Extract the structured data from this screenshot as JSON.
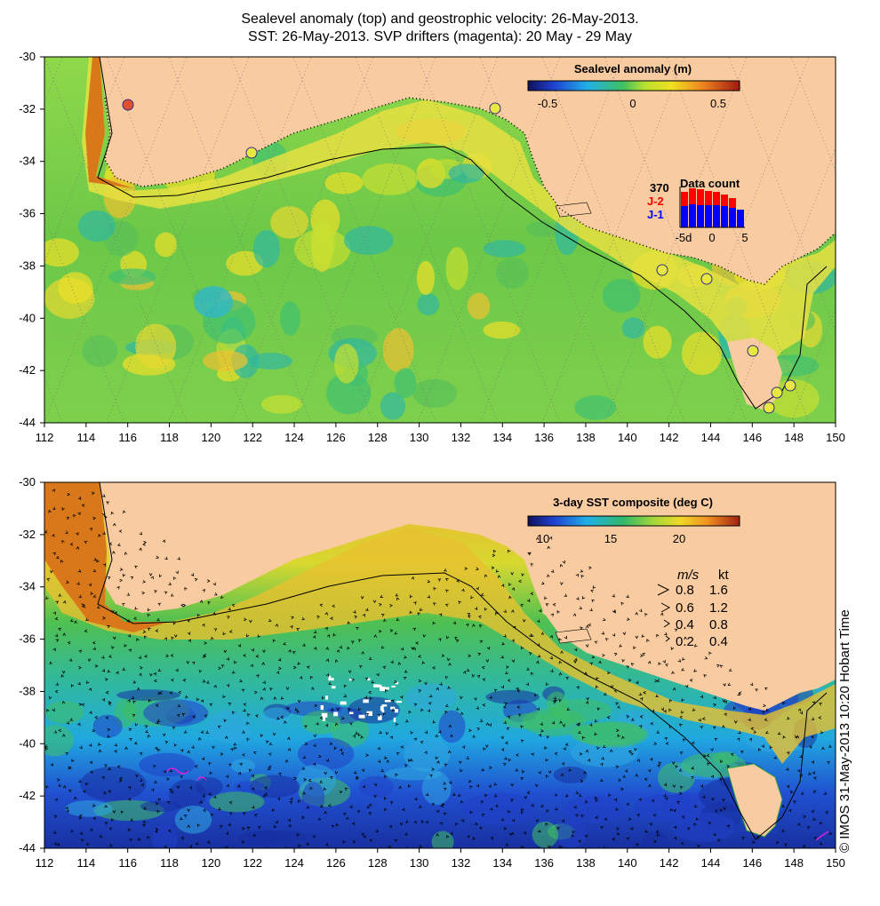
{
  "title_line1": "Sealevel anomaly (top) and geostrophic velocity: 26-May-2013.",
  "title_line2": "SST: 26-May-2013. SVP drifters (magenta): 20 May - 29 May",
  "lon_ticks": [
    "112",
    "114",
    "116",
    "118",
    "120",
    "122",
    "124",
    "126",
    "128",
    "130",
    "132",
    "134",
    "136",
    "138",
    "140",
    "142",
    "144",
    "146",
    "148",
    "150"
  ],
  "lat_ticks": [
    "-30",
    "-32",
    "-34",
    "-36",
    "-38",
    "-40",
    "-42",
    "-44"
  ],
  "top_map": {
    "colorbar_title": "Sealevel anomaly (m)",
    "colorbar_ticks": [
      "-0.5",
      "0",
      "0.5"
    ],
    "data_count": {
      "title": "Data count",
      "max_label": "370",
      "series": [
        {
          "name": "J-2",
          "color": "#ff0000"
        },
        {
          "name": "J-1",
          "color": "#0000ff"
        }
      ],
      "x_ticks": [
        "-5d",
        "0",
        "5"
      ]
    }
  },
  "bottom_map": {
    "colorbar_title": "3-day SST composite (deg C)",
    "colorbar_ticks": [
      "10",
      "15",
      "20"
    ],
    "legend": {
      "header_ms": "m/s",
      "header_kt": "kt",
      "rows": [
        {
          "ms": "0.8",
          "kt": "1.6"
        },
        {
          "ms": "0.6",
          "kt": "1.2"
        },
        {
          "ms": "0.4",
          "kt": "0.8"
        },
        {
          "ms": "0.2",
          "kt": "0.4"
        }
      ]
    }
  },
  "copyright": "© IMOS 31-May-2013 10:20 Hobart Time",
  "colors": {
    "land": "#f9cba0",
    "ocean_top": "#88d848",
    "ocean_bottom_warm": "#f0b830",
    "ocean_bottom_cold": "#2060d8"
  }
}
